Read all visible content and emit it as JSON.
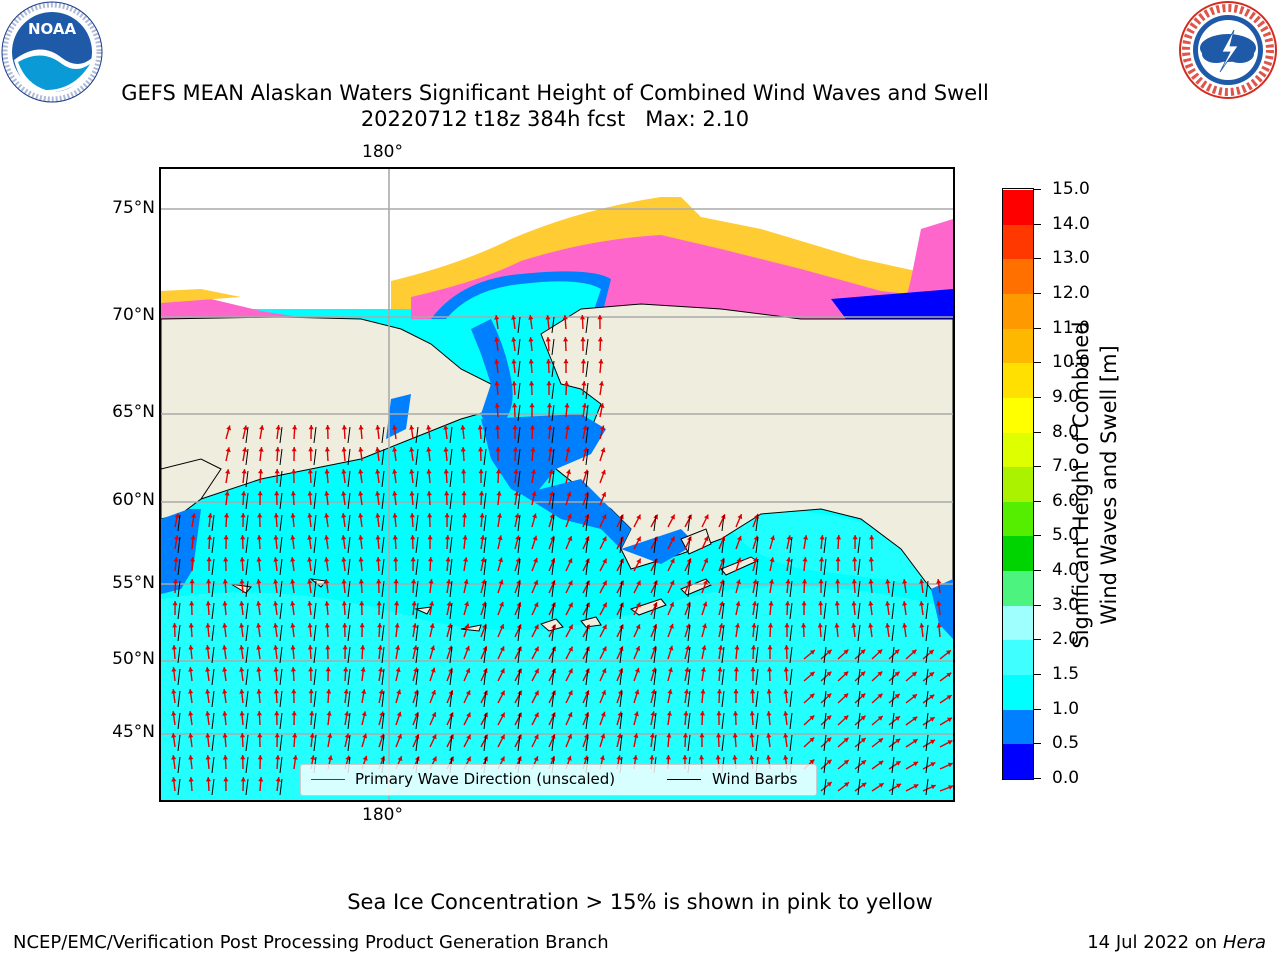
{
  "title_line1": "GEFS MEAN Alaskan Waters Significant Height of Combined Wind Waves and Swell",
  "title_line2": "20220712 t18z 384h fcst   Max: 2.10",
  "logos": {
    "noaa": {
      "name": "noaa-logo",
      "text": "NOAA",
      "ring_text": "NATIONAL OCEANIC AND ATMOSPHERIC ADMINISTRATION · U.S. DEPARTMENT OF COMMERCE"
    },
    "nws": {
      "name": "nws-logo",
      "ring_text": "NATIONAL WEATHER SERVICE"
    }
  },
  "map": {
    "lon_label_top": "180°",
    "lon_label_bottom": "180°",
    "lat_labels": [
      "75°N",
      "70°N",
      "65°N",
      "60°N",
      "55°N",
      "50°N",
      "45°N"
    ],
    "legend": {
      "wave_direction": "Primary Wave Direction (unscaled)",
      "wind_barbs": "Wind Barbs"
    },
    "colors": {
      "land": "#eeedde",
      "ocean_main": "#00ffff",
      "ocean_light": "#3fffff",
      "shallow": "#007fff",
      "ice_pink": "#ff66cc",
      "ice_yellow": "#ffcc33",
      "wave_arrow": "#e00000",
      "wind_barb": "#000000"
    }
  },
  "colorbar": {
    "title_line1": "Significant Height of Combined",
    "title_line2": "Wind Waves and Swell [m]",
    "tick_labels": [
      "0.0",
      "0.5",
      "1.0",
      "1.5",
      "2.0",
      "3.0",
      "4.0",
      "5.0",
      "6.0",
      "7.0",
      "8.0",
      "9.0",
      "10.0",
      "11.0",
      "12.0",
      "13.0",
      "14.0",
      "15.0"
    ],
    "bin_colors": [
      "#0000ff",
      "#007fff",
      "#00ffff",
      "#3fffff",
      "#9fffff",
      "#4df37f",
      "#00d400",
      "#55ee00",
      "#aaf200",
      "#ddff00",
      "#ffff00",
      "#ffe000",
      "#ffb800",
      "#ff9900",
      "#ff7000",
      "#ff3800",
      "#ff0000"
    ]
  },
  "note": "Sea Ice Concentration > 15% is shown in pink to yellow",
  "footer": {
    "left": "NCEP/EMC/Verification Post Processing Product Generation Branch",
    "date": "14 Jul 2022 on ",
    "host": "Hera"
  }
}
